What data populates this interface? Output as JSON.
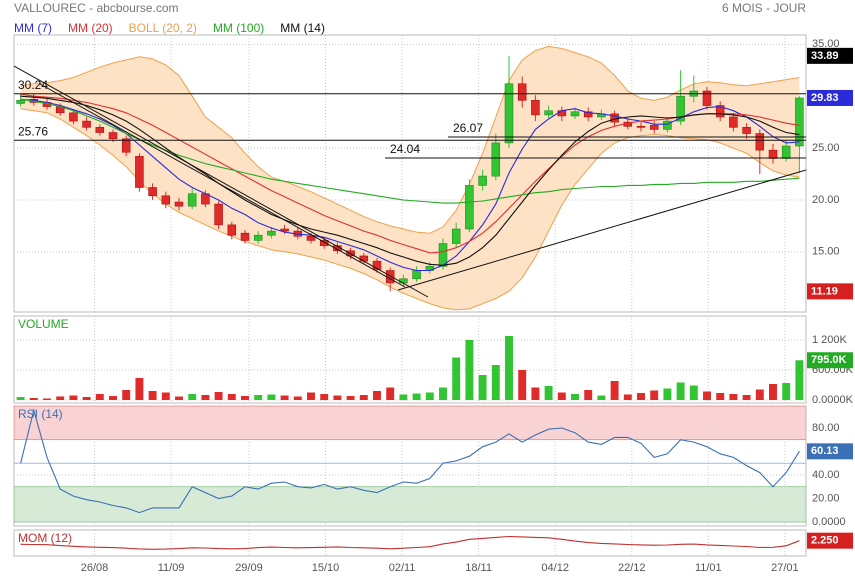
{
  "chart_data": [
    {
      "type": "candlestick",
      "title": "VALLOUREC - abcbourse.com",
      "subtitle": "6 MOIS - JOUR",
      "xlim": [
        -0.5,
        59.5
      ],
      "ylim": [
        9.2,
        35.9
      ],
      "yticks": [
        {
          "value": 15,
          "label": "15.00"
        },
        {
          "value": 20,
          "label": "20.00"
        },
        {
          "value": 25,
          "label": "25.00"
        },
        {
          "value": 35,
          "label": "35.00"
        }
      ],
      "grid": true,
      "up_color": "#33c433",
      "down_color": "#e02b2b",
      "open": [
        29.3,
        29.7,
        29.4,
        29.0,
        28.4,
        27.6,
        27.0,
        26.5,
        25.9,
        24.2,
        21.2,
        20.4,
        19.8,
        19.4,
        20.6,
        19.6,
        17.6,
        16.8,
        16.1,
        16.6,
        17.2,
        17.0,
        16.5,
        16.1,
        15.6,
        15.1,
        14.6,
        14.1,
        13.2,
        12.0,
        12.4,
        13.2,
        13.6,
        15.8,
        17.2,
        21.4,
        22.3,
        25.5,
        31.2,
        29.6,
        28.2,
        28.6,
        28.1,
        28.5,
        28.0,
        28.3,
        27.5,
        27.1,
        27.2,
        26.8,
        27.6,
        30.0,
        30.5,
        29.1,
        28.0,
        27.0,
        26.4,
        24.8,
        24.0,
        25.2
      ],
      "high": [
        30.2,
        30.2,
        29.8,
        29.3,
        28.7,
        28.0,
        27.3,
        26.8,
        26.2,
        24.5,
        21.6,
        20.8,
        20.2,
        21.1,
        20.9,
        19.9,
        17.9,
        17.1,
        17.0,
        17.4,
        17.6,
        17.3,
        16.8,
        16.4,
        15.9,
        15.4,
        14.9,
        14.4,
        13.5,
        12.8,
        13.6,
        14.0,
        16.3,
        17.8,
        22.0,
        22.9,
        26.4,
        33.89,
        31.9,
        30.1,
        29.1,
        29.0,
        28.9,
        28.9,
        28.7,
        28.6,
        27.9,
        27.5,
        27.6,
        28.0,
        32.5,
        32.0,
        30.9,
        29.5,
        28.4,
        27.4,
        26.8,
        25.4,
        25.8,
        30.0
      ],
      "low": [
        29.0,
        29.1,
        28.7,
        28.1,
        27.3,
        26.7,
        26.2,
        25.6,
        24.2,
        20.8,
        20.0,
        19.2,
        19.0,
        19.1,
        19.3,
        17.2,
        16.2,
        15.8,
        15.8,
        16.3,
        16.7,
        16.2,
        15.8,
        15.3,
        14.8,
        14.3,
        13.8,
        13.0,
        11.19,
        11.7,
        12.1,
        12.9,
        13.3,
        15.4,
        16.9,
        20.9,
        21.9,
        25.0,
        28.9,
        27.6,
        27.9,
        27.6,
        27.8,
        27.6,
        27.7,
        27.1,
        26.8,
        26.6,
        26.4,
        26.5,
        27.2,
        29.4,
        28.7,
        27.6,
        26.6,
        25.9,
        22.5,
        23.5,
        23.7,
        22.6
      ],
      "close": [
        29.6,
        29.4,
        29.0,
        28.4,
        27.6,
        27.0,
        26.5,
        25.9,
        24.6,
        21.2,
        20.4,
        19.6,
        19.4,
        20.6,
        19.6,
        17.6,
        16.6,
        16.1,
        16.6,
        17.0,
        17.0,
        16.5,
        16.1,
        15.6,
        15.1,
        14.6,
        14.1,
        13.3,
        12.0,
        12.4,
        13.2,
        13.6,
        15.8,
        17.2,
        21.4,
        22.3,
        25.5,
        31.2,
        29.6,
        28.2,
        28.6,
        28.1,
        28.5,
        28.0,
        28.3,
        27.5,
        27.1,
        27.0,
        26.8,
        27.6,
        30.0,
        30.5,
        29.1,
        28.0,
        27.0,
        26.4,
        24.8,
        24.0,
        25.2,
        29.83
      ],
      "overlays": [
        {
          "name": "MM (7)",
          "color": "#2b2bd9",
          "values": [
            29.7,
            29.6,
            29.4,
            29.1,
            28.7,
            28.3,
            27.8,
            27.2,
            26.4,
            25.3,
            24.2,
            23.1,
            22.0,
            21.2,
            20.6,
            20.0,
            19.2,
            18.6,
            17.8,
            17.3,
            16.9,
            16.7,
            16.6,
            16.4,
            16.0,
            15.6,
            15.2,
            14.6,
            14.0,
            13.5,
            13.2,
            13.2,
            13.7,
            14.6,
            16.0,
            17.6,
            19.6,
            22.6,
            24.9,
            26.8,
            27.8,
            28.6,
            28.8,
            28.4,
            28.3,
            28.1,
            27.8,
            27.6,
            27.3,
            27.3,
            27.9,
            28.5,
            28.9,
            29.0,
            28.6,
            28.0,
            27.1,
            26.1,
            25.5,
            25.6
          ]
        },
        {
          "name": "MM (20)",
          "color": "#e03030",
          "values": [
            30.2,
            30.0,
            29.9,
            29.8,
            29.6,
            29.4,
            29.1,
            28.8,
            28.4,
            27.8,
            27.2,
            26.5,
            25.8,
            25.1,
            24.4,
            23.7,
            23.0,
            22.3,
            21.6,
            20.9,
            20.3,
            19.7,
            19.1,
            18.5,
            18.0,
            17.5,
            17.0,
            16.6,
            16.1,
            15.7,
            15.3,
            14.9,
            15.0,
            15.4,
            16.0,
            16.8,
            17.9,
            19.2,
            20.5,
            21.8,
            23.0,
            24.2,
            25.3,
            26.1,
            26.7,
            27.1,
            27.4,
            27.6,
            27.7,
            27.8,
            28.0,
            28.2,
            28.3,
            28.3,
            28.3,
            28.2,
            28.0,
            27.7,
            27.4,
            27.2
          ]
        },
        {
          "name": "BOLL (20, 2)",
          "color": "#f0a04b",
          "fill": "#fde2c6",
          "upper": [
            31.0,
            31.2,
            31.3,
            31.5,
            31.8,
            32.3,
            32.8,
            33.2,
            33.5,
            33.8,
            33.6,
            33.0,
            32.0,
            30.0,
            28.0,
            27.0,
            26.0,
            24.5,
            23.2,
            22.2,
            21.8,
            21.3,
            20.8,
            20.2,
            19.6,
            19.0,
            18.4,
            17.9,
            17.5,
            17.2,
            16.9,
            16.8,
            17.4,
            19.0,
            21.5,
            24.5,
            28.0,
            31.5,
            33.5,
            34.4,
            34.8,
            34.6,
            34.2,
            33.8,
            33.2,
            32.0,
            30.5,
            29.8,
            29.6,
            29.9,
            30.6,
            31.2,
            31.4,
            31.3,
            31.1,
            31.0,
            31.2,
            31.4,
            31.6,
            31.8
          ],
          "lower": [
            28.8,
            28.6,
            28.4,
            27.8,
            27.0,
            26.2,
            25.3,
            24.3,
            23.2,
            21.8,
            20.6,
            19.6,
            18.8,
            18.2,
            17.6,
            17.0,
            16.5,
            16.0,
            15.6,
            15.2,
            15.0,
            14.8,
            14.5,
            14.2,
            13.8,
            13.4,
            12.9,
            12.3,
            11.6,
            11.0,
            10.5,
            10.0,
            9.6,
            9.4,
            9.5,
            10.0,
            10.5,
            11.2,
            12.5,
            14.5,
            17.0,
            19.5,
            21.5,
            23.0,
            24.5,
            25.5,
            26.0,
            26.2,
            26.3,
            26.2,
            26.0,
            25.9,
            25.8,
            25.5,
            25.0,
            24.5,
            23.6,
            22.8,
            22.4,
            22.2
          ]
        },
        {
          "name": "MM (100)",
          "color": "#22aa22",
          "values": [
            29.7,
            29.5,
            29.3,
            29.0,
            28.6,
            28.1,
            27.6,
            27.0,
            26.4,
            25.8,
            25.3,
            24.8,
            24.3,
            23.9,
            23.5,
            23.2,
            22.9,
            22.6,
            22.3,
            22.0,
            21.8,
            21.6,
            21.4,
            21.2,
            21.0,
            20.8,
            20.6,
            20.4,
            20.2,
            20.0,
            19.9,
            19.8,
            19.7,
            19.7,
            19.8,
            19.9,
            20.1,
            20.3,
            20.5,
            20.7,
            20.8,
            21.0,
            21.1,
            21.2,
            21.3,
            21.3,
            21.4,
            21.4,
            21.5,
            21.5,
            21.6,
            21.6,
            21.7,
            21.7,
            21.7,
            21.8,
            21.8,
            21.9,
            22.0,
            22.1
          ]
        },
        {
          "name": "MM (14)",
          "color": "#111111",
          "values": [
            30.0,
            29.9,
            29.8,
            29.6,
            29.4,
            29.1,
            28.7,
            28.2,
            27.6,
            26.8,
            25.9,
            25.0,
            24.1,
            23.3,
            22.5,
            21.6,
            20.8,
            20.0,
            19.3,
            18.6,
            18.1,
            17.6,
            17.2,
            16.9,
            16.6,
            16.2,
            15.8,
            15.4,
            14.9,
            14.5,
            14.1,
            13.8,
            13.7,
            13.9,
            14.5,
            15.4,
            16.6,
            18.2,
            19.8,
            21.4,
            22.9,
            24.3,
            25.6,
            26.6,
            27.4,
            27.8,
            28.0,
            28.1,
            28.0,
            27.9,
            28.0,
            28.2,
            28.3,
            28.3,
            28.2,
            28.0,
            27.6,
            27.0,
            26.5,
            26.3
          ]
        }
      ],
      "hlines": [
        {
          "value": 30.24
        },
        {
          "value": 25.76
        },
        {
          "value": 26.07
        },
        {
          "value": 24.04
        }
      ],
      "last_color": "#2b2bd9",
      "max_color": "#000000",
      "min_color": "#d62020"
    },
    {
      "type": "bar",
      "title": "VOLUME",
      "title_color": "#22aa22",
      "xlim": [
        -0.5,
        59.5
      ],
      "ylim": [
        0,
        1640
      ],
      "yticks": [
        {
          "value": 0,
          "label": "0.0000K"
        },
        {
          "value": 600,
          "label": "600.00K"
        },
        {
          "value": 1200,
          "label": "1 200K"
        }
      ],
      "values": [
        60,
        40,
        30,
        70,
        90,
        60,
        120,
        80,
        200,
        440,
        180,
        150,
        70,
        120,
        100,
        160,
        120,
        80,
        100,
        110,
        90,
        70,
        150,
        120,
        90,
        80,
        100,
        180,
        250,
        110,
        130,
        150,
        250,
        850,
        1200,
        500,
        700,
        1280,
        600,
        250,
        280,
        150,
        120,
        200,
        90,
        380,
        110,
        140,
        190,
        230,
        350,
        290,
        170,
        140,
        120,
        100,
        210,
        320,
        340,
        795
      ],
      "last_label": "795.0K",
      "last_color": "#22aa22"
    },
    {
      "type": "line",
      "title": "RSI (14)",
      "title_color": "#3b6fb6",
      "color": "#3b6fb6",
      "xlim": [
        -0.5,
        59.5
      ],
      "ylim": [
        -3.4,
        98.7
      ],
      "yticks": [
        {
          "value": 0,
          "label": "0.0000"
        },
        {
          "value": 20,
          "label": "20.00"
        },
        {
          "value": 40,
          "label": "40.00"
        },
        {
          "value": 80,
          "label": "80.00"
        }
      ],
      "values": [
        50,
        95,
        55,
        28,
        22,
        19,
        17,
        14,
        12,
        8,
        12,
        12,
        12,
        30,
        25,
        20,
        22,
        30,
        28,
        33,
        34,
        30,
        29,
        32,
        28,
        30,
        27,
        25,
        30,
        34,
        33,
        37,
        50,
        52,
        56,
        64,
        68,
        75,
        68,
        74,
        79,
        80,
        76,
        68,
        66,
        72,
        72,
        67,
        55,
        58,
        70,
        68,
        64,
        58,
        55,
        48,
        42,
        30,
        42,
        60.13
      ],
      "overbought": 70,
      "oversold": 30,
      "midline": 50,
      "overbought_color": "#f9d3d3",
      "oversold_color": "#d6ead6",
      "last_color": "#3b6fb6"
    },
    {
      "type": "line",
      "title": "MOM (12)",
      "title_color": "#c03030",
      "color": "#c03030",
      "xlim": [
        -0.5,
        59.5
      ],
      "ylim": [
        -6,
        8
      ],
      "values": [
        0.3,
        0.2,
        0.1,
        -0.4,
        -0.8,
        -1.1,
        -1.3,
        -1.5,
        -1.8,
        -2.2,
        -2.4,
        -2.3,
        -2.0,
        -1.6,
        -1.7,
        -2.0,
        -2.1,
        -2.0,
        -1.5,
        -1.2,
        -1.4,
        -1.6,
        -1.5,
        -1.3,
        -1.1,
        -1.4,
        -1.6,
        -1.8,
        -2.1,
        -1.8,
        -1.4,
        -1.0,
        0.5,
        1.5,
        3.0,
        3.5,
        4.0,
        4.5,
        4.3,
        4.0,
        3.8,
        3.0,
        2.0,
        1.2,
        0.8,
        0.5,
        0.2,
        0.0,
        -0.2,
        -0.1,
        0.3,
        0.4,
        0.0,
        -0.3,
        -0.6,
        -0.9,
        -1.4,
        -1.3,
        -0.5,
        2.25
      ],
      "last_label": "2.250",
      "last_color": "#d62020",
      "xticks": [
        {
          "value": 5.6,
          "label": "26/08"
        },
        {
          "value": 11.4,
          "label": "11/09"
        },
        {
          "value": 17.3,
          "label": "29/09"
        },
        {
          "value": 23.1,
          "label": "15/10"
        },
        {
          "value": 28.9,
          "label": "02/11"
        },
        {
          "value": 34.7,
          "label": "18/11"
        },
        {
          "value": 40.5,
          "label": "04/12"
        },
        {
          "value": 46.3,
          "label": "22/12"
        },
        {
          "value": 52.1,
          "label": "11/01"
        },
        {
          "value": 57.9,
          "label": "27/01"
        }
      ]
    }
  ]
}
